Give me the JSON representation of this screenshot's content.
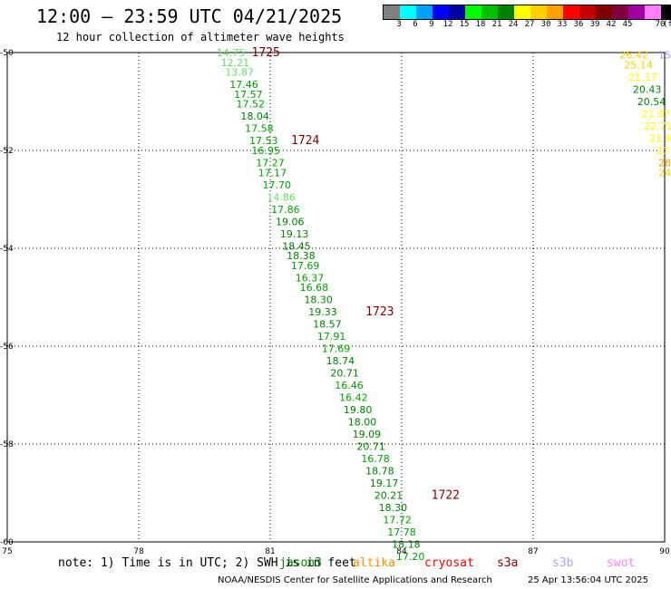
{
  "header": {
    "title": "12:00 – 23:59 UTC 04/21/2025",
    "subtitle": "12 hour collection of altimeter wave heights"
  },
  "colorbar": {
    "unit": "(ft)",
    "colors": [
      "#808080",
      "#00ffff",
      "#00a0ff",
      "#0000ff",
      "#0000a0",
      "#00ff00",
      "#00c000",
      "#008000",
      "#ffff00",
      "#ffd000",
      "#ffa000",
      "#ff0000",
      "#c00000",
      "#800000",
      "#800040",
      "#a000a0",
      "#ff80ff",
      "#000000"
    ],
    "labels": [
      "3",
      "6",
      "9",
      "12",
      "15",
      "18",
      "21",
      "24",
      "27",
      "30",
      "33",
      "36",
      "39",
      "42",
      "45",
      "70"
    ]
  },
  "chart_data": {
    "type": "scatter",
    "xlim": [
      75,
      90
    ],
    "ylim": [
      -60,
      -50
    ],
    "x_ticks": [
      "75",
      "78",
      "81",
      "84",
      "87",
      "90"
    ],
    "y_ticks": [
      "-50",
      "-52",
      "-54",
      "-56",
      "-58",
      "-60"
    ],
    "grid": true,
    "points": [
      {
        "lon": 80.1,
        "lat": -50.0,
        "swh": "14.75",
        "color": "#66dd66"
      },
      {
        "lon": 80.2,
        "lat": -50.2,
        "swh": "12.21",
        "color": "#66dd66"
      },
      {
        "lon": 80.3,
        "lat": -50.4,
        "swh": "13.87",
        "color": "#66dd66"
      },
      {
        "lon": 80.4,
        "lat": -50.65,
        "swh": "17.46",
        "color": "#00a000"
      },
      {
        "lon": 80.5,
        "lat": -50.85,
        "swh": "17.57",
        "color": "#00a000"
      },
      {
        "lon": 80.55,
        "lat": -51.05,
        "swh": "17.52",
        "color": "#00a000"
      },
      {
        "lon": 80.65,
        "lat": -51.3,
        "swh": "18.04",
        "color": "#008000"
      },
      {
        "lon": 80.75,
        "lat": -51.55,
        "swh": "17.58",
        "color": "#00a000"
      },
      {
        "lon": 80.85,
        "lat": -51.8,
        "swh": "17.53",
        "color": "#00a000"
      },
      {
        "lon": 80.9,
        "lat": -52.0,
        "swh": "16.95",
        "color": "#00a000"
      },
      {
        "lon": 81.0,
        "lat": -52.25,
        "swh": "17.27",
        "color": "#00a000"
      },
      {
        "lon": 81.05,
        "lat": -52.45,
        "swh": "17.17",
        "color": "#00a000"
      },
      {
        "lon": 81.15,
        "lat": -52.7,
        "swh": "17.70",
        "color": "#00a000"
      },
      {
        "lon": 81.25,
        "lat": -52.95,
        "swh": "14.86",
        "color": "#66dd66"
      },
      {
        "lon": 81.35,
        "lat": -53.2,
        "swh": "17.86",
        "color": "#00a000"
      },
      {
        "lon": 81.45,
        "lat": -53.45,
        "swh": "19.06",
        "color": "#008000"
      },
      {
        "lon": 81.55,
        "lat": -53.7,
        "swh": "19.13",
        "color": "#008000"
      },
      {
        "lon": 81.6,
        "lat": -53.95,
        "swh": "18.45",
        "color": "#008000"
      },
      {
        "lon": 81.7,
        "lat": -54.15,
        "swh": "18.38",
        "color": "#008000"
      },
      {
        "lon": 81.8,
        "lat": -54.35,
        "swh": "17.69",
        "color": "#00a000"
      },
      {
        "lon": 81.9,
        "lat": -54.6,
        "swh": "16.37",
        "color": "#00a000"
      },
      {
        "lon": 82.0,
        "lat": -54.8,
        "swh": "16.68",
        "color": "#00a000"
      },
      {
        "lon": 82.1,
        "lat": -55.05,
        "swh": "18.30",
        "color": "#008000"
      },
      {
        "lon": 82.2,
        "lat": -55.3,
        "swh": "19.33",
        "color": "#008000"
      },
      {
        "lon": 82.3,
        "lat": -55.55,
        "swh": "18.57",
        "color": "#008000"
      },
      {
        "lon": 82.4,
        "lat": -55.8,
        "swh": "17.91",
        "color": "#00a000"
      },
      {
        "lon": 82.5,
        "lat": -56.05,
        "swh": "17.69",
        "color": "#00a000"
      },
      {
        "lon": 82.6,
        "lat": -56.3,
        "swh": "18.74",
        "color": "#008000"
      },
      {
        "lon": 82.7,
        "lat": -56.55,
        "swh": "20.71",
        "color": "#008000"
      },
      {
        "lon": 82.8,
        "lat": -56.8,
        "swh": "16.46",
        "color": "#00a000"
      },
      {
        "lon": 82.9,
        "lat": -57.05,
        "swh": "16.42",
        "color": "#00a000"
      },
      {
        "lon": 83.0,
        "lat": -57.3,
        "swh": "19.80",
        "color": "#008000"
      },
      {
        "lon": 83.1,
        "lat": -57.55,
        "swh": "18.00",
        "color": "#008000"
      },
      {
        "lon": 83.2,
        "lat": -57.8,
        "swh": "19.09",
        "color": "#008000"
      },
      {
        "lon": 83.3,
        "lat": -58.05,
        "swh": "20.71",
        "color": "#008000"
      },
      {
        "lon": 83.4,
        "lat": -58.3,
        "swh": "16.78",
        "color": "#00a000"
      },
      {
        "lon": 83.5,
        "lat": -58.55,
        "swh": "18.78",
        "color": "#008000"
      },
      {
        "lon": 83.6,
        "lat": -58.8,
        "swh": "19.17",
        "color": "#008000"
      },
      {
        "lon": 83.7,
        "lat": -59.05,
        "swh": "20.21",
        "color": "#008000"
      },
      {
        "lon": 83.8,
        "lat": -59.3,
        "swh": "18.30",
        "color": "#008000"
      },
      {
        "lon": 83.9,
        "lat": -59.55,
        "swh": "17.72",
        "color": "#00a000"
      },
      {
        "lon": 84.0,
        "lat": -59.8,
        "swh": "17.78",
        "color": "#00a000"
      },
      {
        "lon": 84.1,
        "lat": -60.05,
        "swh": "18.18",
        "color": "#008000"
      },
      {
        "lon": 84.2,
        "lat": -60.3,
        "swh": "17.20",
        "color": "#00a000"
      },
      {
        "lon": 89.3,
        "lat": -50.05,
        "swh": "26.42",
        "color": "#ffd000"
      },
      {
        "lon": 89.4,
        "lat": -50.25,
        "swh": "25.14",
        "color": "#ffd000"
      },
      {
        "lon": 89.5,
        "lat": -50.5,
        "swh": "21.17",
        "color": "#ffff00"
      },
      {
        "lon": 89.6,
        "lat": -50.75,
        "swh": "20.43",
        "color": "#008000"
      },
      {
        "lon": 89.7,
        "lat": -51.0,
        "swh": "20.54",
        "color": "#008000"
      },
      {
        "lon": 89.8,
        "lat": -51.25,
        "swh": "21.87",
        "color": "#ffff00"
      },
      {
        "lon": 89.85,
        "lat": -51.5,
        "swh": "22.71",
        "color": "#ffff00"
      },
      {
        "lon": 89.9,
        "lat": -51.75,
        "swh": "21.9",
        "color": "#ffff00"
      },
      {
        "lon": 89.95,
        "lat": -52.0,
        "swh": "23",
        "color": "#ffff00"
      },
      {
        "lon": 90.0,
        "lat": -52.25,
        "swh": "28",
        "color": "#ffa000"
      },
      {
        "lon": 90.0,
        "lat": -52.45,
        "swh": "24",
        "color": "#ffd000"
      },
      {
        "lon": 90.0,
        "lat": -50.05,
        "swh": "15",
        "color": "#a0a0ff"
      }
    ],
    "pass_labels": [
      {
        "lon": 80.9,
        "lat": -50.0,
        "text": "1725"
      },
      {
        "lon": 81.8,
        "lat": -51.8,
        "text": "1724"
      },
      {
        "lon": 83.5,
        "lat": -55.3,
        "text": "1723"
      },
      {
        "lon": 85.0,
        "lat": -59.05,
        "text": "1722"
      }
    ]
  },
  "footer": {
    "note": "note: 1) Time is in UTC; 2) SWH is in feet",
    "legend": [
      {
        "name": "jason3",
        "color": "#008000"
      },
      {
        "name": "altika",
        "color": "#ff8c00"
      },
      {
        "name": "cryosat",
        "color": "#ff0000"
      },
      {
        "name": "s3a",
        "color": "#8b0000"
      },
      {
        "name": "s3b",
        "color": "#b0a0ff"
      },
      {
        "name": "swot",
        "color": "#ff80ff"
      }
    ],
    "agency": "NOAA/NESDIS Center for Satellite Applications and Research",
    "timestamp": "25 Apr 13:56:04 UTC 2025"
  }
}
